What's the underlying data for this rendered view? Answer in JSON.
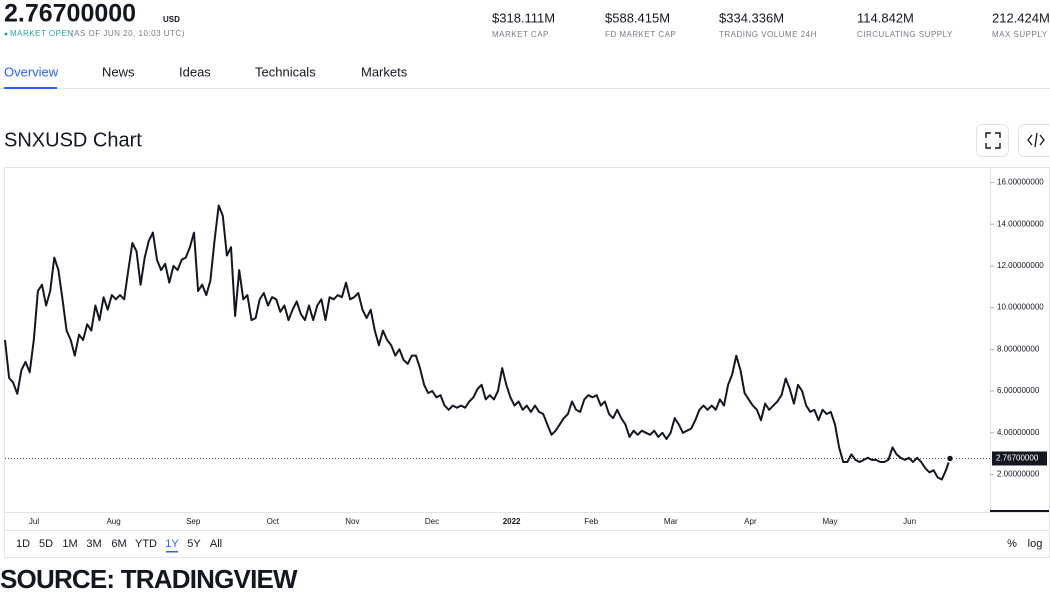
{
  "header": {
    "price": "2.76700000",
    "currency": "USD",
    "status": "MARKET OPEN",
    "as_of": "(AS OF JUN 20, 10:03 UTC)",
    "stats": [
      {
        "value": "$318.111M",
        "label": "MARKET CAP"
      },
      {
        "value": "$588.415M",
        "label": "FD MARKET CAP"
      },
      {
        "value": "$334.336M",
        "label": "TRADING VOLUME 24H"
      },
      {
        "value": "114.842M",
        "label": "CIRCULATING SUPPLY"
      },
      {
        "value": "212.424M",
        "label": "MAX SUPPLY"
      }
    ]
  },
  "tabs": [
    "Overview",
    "News",
    "Ideas",
    "Technicals",
    "Markets"
  ],
  "chart_data": {
    "type": "line",
    "title": "SNXUSD Chart",
    "color": "#131722",
    "xticks": [
      "Jul",
      "Aug",
      "Sep",
      "Oct",
      "Nov",
      "Dec",
      "2022",
      "Feb",
      "Mar",
      "Apr",
      "May",
      "Jun"
    ],
    "values": [
      8.45,
      6.63,
      6.4,
      5.87,
      7.0,
      7.4,
      6.9,
      8.45,
      10.8,
      11.1,
      10.1,
      10.8,
      12.4,
      11.8,
      10.4,
      8.9,
      8.45,
      7.7,
      8.7,
      8.45,
      9.2,
      8.9,
      10.1,
      9.4,
      10.5,
      9.9,
      10.6,
      10.4,
      10.6,
      10.4,
      11.8,
      13.1,
      12.7,
      11.1,
      12.4,
      13.2,
      13.6,
      12.3,
      11.8,
      12.1,
      11.2,
      12.0,
      11.8,
      12.3,
      12.4,
      12.9,
      13.6,
      10.8,
      11.1,
      10.6,
      11.3,
      13.2,
      14.9,
      14.4,
      12.5,
      12.9,
      9.6,
      11.8,
      10.4,
      10.6,
      9.4,
      9.5,
      10.4,
      10.7,
      10.1,
      10.5,
      10.4,
      9.8,
      10.1,
      9.4,
      9.9,
      10.3,
      9.7,
      9.4,
      10.1,
      9.4,
      10.1,
      10.4,
      9.4,
      10.5,
      10.4,
      10.6,
      10.5,
      11.2,
      10.4,
      10.5,
      10.7,
      9.9,
      9.5,
      9.9,
      8.9,
      8.2,
      8.9,
      8.45,
      8.2,
      7.7,
      8.0,
      7.5,
      7.3,
      7.7,
      7.7,
      7.1,
      6.3,
      5.9,
      6.0,
      5.7,
      5.8,
      5.3,
      5.1,
      5.3,
      5.2,
      5.3,
      5.2,
      5.5,
      5.7,
      6.1,
      6.3,
      5.6,
      5.8,
      5.6,
      6.0,
      7.1,
      6.3,
      5.7,
      5.3,
      5.5,
      5.1,
      5.3,
      5.0,
      5.3,
      5.0,
      4.9,
      4.4,
      3.9,
      4.1,
      4.4,
      4.7,
      4.9,
      5.5,
      5.1,
      5.0,
      5.6,
      5.8,
      5.7,
      5.8,
      5.3,
      5.5,
      4.9,
      4.7,
      5.1,
      4.7,
      4.4,
      3.8,
      4.1,
      3.9,
      4.1,
      4.0,
      3.9,
      4.1,
      3.8,
      4.0,
      3.7,
      4.0,
      4.7,
      4.4,
      4.0,
      4.1,
      4.2,
      4.6,
      5.1,
      5.3,
      5.1,
      5.3,
      5.1,
      5.6,
      5.3,
      6.3,
      6.8,
      7.7,
      7.0,
      5.9,
      5.6,
      5.3,
      5.1,
      4.6,
      5.4,
      5.1,
      5.3,
      5.5,
      5.8,
      6.6,
      6.1,
      5.4,
      6.3,
      6.0,
      5.3,
      5.0,
      5.1,
      4.6,
      5.1,
      4.9,
      5.0,
      4.4,
      3.3,
      2.6,
      2.6,
      2.96,
      2.7,
      2.6,
      2.7,
      2.8,
      2.7,
      2.7,
      2.6,
      2.6,
      2.7,
      3.3,
      2.96,
      2.8,
      2.7,
      2.8,
      2.6,
      2.8,
      2.6,
      2.3,
      2.1,
      2.2,
      1.86,
      1.76,
      2.2,
      2.767
    ],
    "ylim": [
      0.2,
      16.6
    ],
    "yticks": [
      {
        "value": 2,
        "label": "2.00000000"
      },
      {
        "value": 4,
        "label": "4.00000000"
      },
      {
        "value": 6,
        "label": "6.00000000"
      },
      {
        "value": 8,
        "label": "8.00000000"
      },
      {
        "value": 10,
        "label": "10.00000000"
      },
      {
        "value": 12,
        "label": "12.00000000"
      },
      {
        "value": 14,
        "label": "14.00000000"
      },
      {
        "value": 16,
        "label": "16.00000000"
      }
    ],
    "last_price": {
      "value": 2.767,
      "label": "2.76700000"
    }
  },
  "ranges": [
    "1D",
    "5D",
    "1M",
    "3M",
    "6M",
    "YTD",
    "1Y",
    "5Y",
    "All"
  ],
  "scale_options": [
    "%",
    "log"
  ],
  "source": "SOURCE: TRADINGVIEW"
}
